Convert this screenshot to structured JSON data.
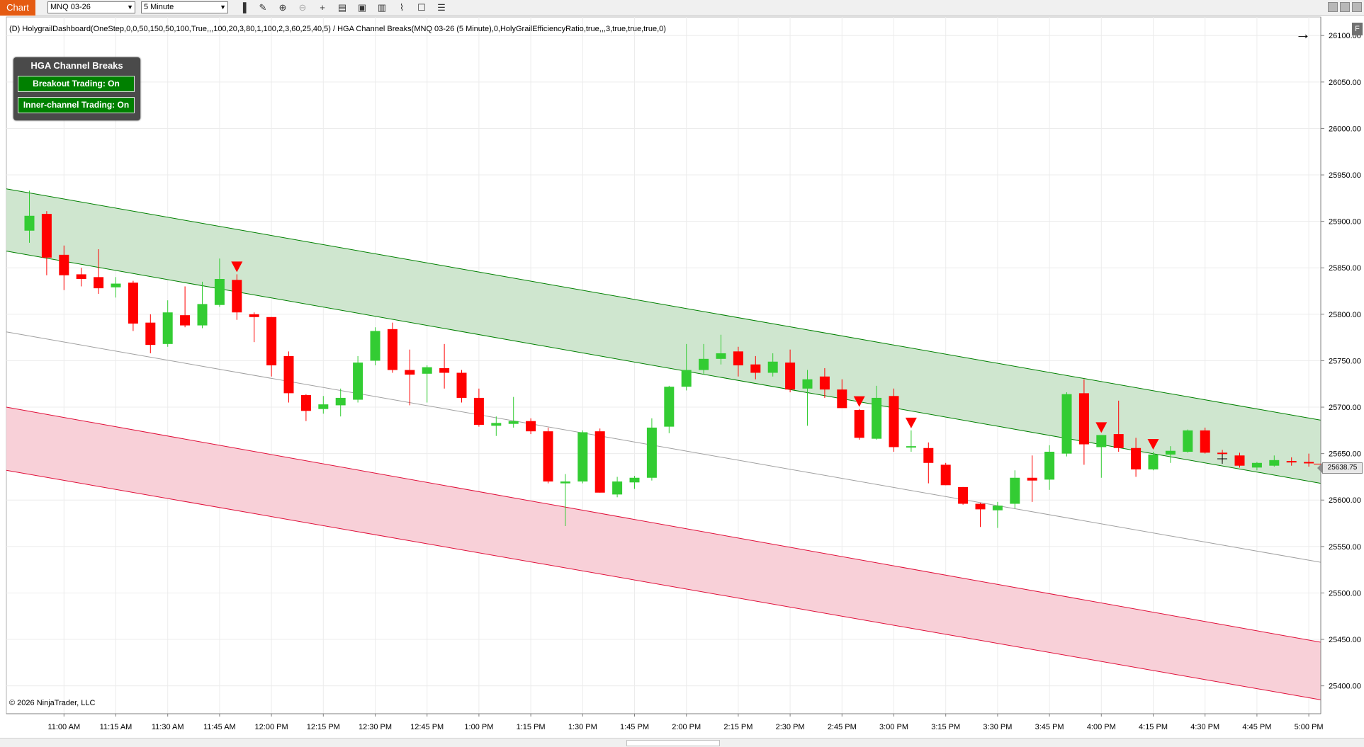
{
  "toolbar": {
    "tab_label": "Chart",
    "instrument": "MNQ 03-26",
    "interval": "5 Minute",
    "tools": [
      "bar-type-icon",
      "drawing-tools-icon",
      "zoom-in-icon",
      "zoom-out-icon",
      "crosshair-icon",
      "data-box-icon",
      "strategies-icon",
      "indicators-icon",
      "chart-trader-icon",
      "properties-icon"
    ]
  },
  "chart": {
    "indicator_text": "(D) HolygrailDashboard(OneStep,0,0,50,150,50,100,True,,,100,20,3,80,1,100,2,3,60,25,40,5) / HGA Channel Breaks(MNQ 03-26 (5 Minute),0,HolyGrailEfficiencyRatio,true,,,3,true,true,true,0)",
    "copyright": "© 2026 NinjaTrader, LLC",
    "last_price": "25638.75",
    "f_button": "F"
  },
  "dashboard": {
    "title": "HGA Channel Breaks",
    "breakout_label": "Breakout Trading: On",
    "inner_label": "Inner-channel Trading: On"
  },
  "colors": {
    "up": "#33cc33",
    "down": "#ff0000",
    "green_channel": "#008000",
    "green_fill": "#cfe6cf",
    "red_channel": "#e0103a",
    "red_fill": "#f8d0d8",
    "mid_line": "#a0a0a0",
    "tab": "#e55b12"
  },
  "chart_data": {
    "type": "candlestick",
    "instrument": "MNQ 03-26",
    "interval": "5 Minute",
    "ylim": [
      25370,
      26120
    ],
    "y_ticks": [
      "26100.00",
      "26050.00",
      "26000.00",
      "25950.00",
      "25900.00",
      "25850.00",
      "25800.00",
      "25750.00",
      "25700.00",
      "25650.00",
      "25600.00",
      "25550.00",
      "25500.00",
      "25450.00",
      "25400.00"
    ],
    "y_tick_values": [
      26100,
      26050,
      26000,
      25950,
      25900,
      25850,
      25800,
      25750,
      25700,
      25650,
      25600,
      25550,
      25500,
      25450,
      25400
    ],
    "x_labels": [
      "11:00 AM",
      "11:15 AM",
      "11:30 AM",
      "11:45 AM",
      "12:00 PM",
      "12:15 PM",
      "12:30 PM",
      "12:45 PM",
      "1:00 PM",
      "1:15 PM",
      "1:30 PM",
      "1:45 PM",
      "2:00 PM",
      "2:15 PM",
      "2:30 PM",
      "2:45 PM",
      "3:00 PM",
      "3:15 PM",
      "3:30 PM",
      "3:45 PM",
      "4:00 PM",
      "4:15 PM",
      "4:30 PM",
      "4:45 PM",
      "5:00 PM"
    ],
    "x_label_index": [
      2,
      5,
      8,
      11,
      14,
      17,
      20,
      23,
      26,
      29,
      32,
      35,
      38,
      41,
      44,
      47,
      50,
      53,
      56,
      59,
      62,
      65,
      68,
      71,
      74
    ],
    "candles": [
      {
        "o": 25890,
        "h": 25933,
        "l": 25877,
        "c": 25906
      },
      {
        "o": 25908,
        "h": 25911,
        "l": 25842,
        "c": 25861
      },
      {
        "o": 25864,
        "h": 25874,
        "l": 25826,
        "c": 25842
      },
      {
        "o": 25843,
        "h": 25850,
        "l": 25830,
        "c": 25838
      },
      {
        "o": 25840,
        "h": 25870,
        "l": 25822,
        "c": 25828
      },
      {
        "o": 25829,
        "h": 25840,
        "l": 25818,
        "c": 25833
      },
      {
        "o": 25834,
        "h": 25836,
        "l": 25782,
        "c": 25790
      },
      {
        "o": 25791,
        "h": 25800,
        "l": 25758,
        "c": 25767
      },
      {
        "o": 25768,
        "h": 25815,
        "l": 25765,
        "c": 25802
      },
      {
        "o": 25799,
        "h": 25830,
        "l": 25786,
        "c": 25788
      },
      {
        "o": 25788,
        "h": 25835,
        "l": 25785,
        "c": 25811
      },
      {
        "o": 25810,
        "h": 25860,
        "l": 25808,
        "c": 25838
      },
      {
        "o": 25837,
        "h": 25843,
        "l": 25794,
        "c": 25802
      },
      {
        "o": 25800,
        "h": 25802,
        "l": 25770,
        "c": 25797
      },
      {
        "o": 25797,
        "h": 25797,
        "l": 25733,
        "c": 25745
      },
      {
        "o": 25755,
        "h": 25760,
        "l": 25705,
        "c": 25715
      },
      {
        "o": 25713,
        "h": 25714,
        "l": 25685,
        "c": 25696
      },
      {
        "o": 25698,
        "h": 25712,
        "l": 25693,
        "c": 25703
      },
      {
        "o": 25702,
        "h": 25720,
        "l": 25690,
        "c": 25710
      },
      {
        "o": 25708,
        "h": 25755,
        "l": 25705,
        "c": 25748
      },
      {
        "o": 25750,
        "h": 25786,
        "l": 25745,
        "c": 25782
      },
      {
        "o": 25784,
        "h": 25791,
        "l": 25737,
        "c": 25740
      },
      {
        "o": 25740,
        "h": 25762,
        "l": 25702,
        "c": 25735
      },
      {
        "o": 25736,
        "h": 25745,
        "l": 25705,
        "c": 25743
      },
      {
        "o": 25742,
        "h": 25768,
        "l": 25720,
        "c": 25737
      },
      {
        "o": 25737,
        "h": 25740,
        "l": 25705,
        "c": 25710
      },
      {
        "o": 25710,
        "h": 25720,
        "l": 25679,
        "c": 25681
      },
      {
        "o": 25680,
        "h": 25690,
        "l": 25669,
        "c": 25683
      },
      {
        "o": 25682,
        "h": 25711,
        "l": 25678,
        "c": 25685
      },
      {
        "o": 25685,
        "h": 25688,
        "l": 25671,
        "c": 25674
      },
      {
        "o": 25674,
        "h": 25678,
        "l": 25618,
        "c": 25620
      },
      {
        "o": 25618,
        "h": 25628,
        "l": 25572,
        "c": 25620
      },
      {
        "o": 25620,
        "h": 25675,
        "l": 25618,
        "c": 25673
      },
      {
        "o": 25674,
        "h": 25677,
        "l": 25608,
        "c": 25608
      },
      {
        "o": 25606,
        "h": 25625,
        "l": 25603,
        "c": 25620
      },
      {
        "o": 25619,
        "h": 25626,
        "l": 25612,
        "c": 25624
      },
      {
        "o": 25624,
        "h": 25688,
        "l": 25621,
        "c": 25678
      },
      {
        "o": 25679,
        "h": 25723,
        "l": 25672,
        "c": 25722
      },
      {
        "o": 25722,
        "h": 25768,
        "l": 25718,
        "c": 25740
      },
      {
        "o": 25740,
        "h": 25768,
        "l": 25735,
        "c": 25752
      },
      {
        "o": 25752,
        "h": 25778,
        "l": 25746,
        "c": 25758
      },
      {
        "o": 25760,
        "h": 25765,
        "l": 25733,
        "c": 25745
      },
      {
        "o": 25746,
        "h": 25755,
        "l": 25730,
        "c": 25737
      },
      {
        "o": 25737,
        "h": 25758,
        "l": 25733,
        "c": 25749
      },
      {
        "o": 25748,
        "h": 25762,
        "l": 25716,
        "c": 25719
      },
      {
        "o": 25720,
        "h": 25740,
        "l": 25680,
        "c": 25730
      },
      {
        "o": 25733,
        "h": 25742,
        "l": 25710,
        "c": 25719
      },
      {
        "o": 25719,
        "h": 25730,
        "l": 25700,
        "c": 25699
      },
      {
        "o": 25697,
        "h": 25698,
        "l": 25665,
        "c": 25667
      },
      {
        "o": 25666,
        "h": 25723,
        "l": 25665,
        "c": 25710
      },
      {
        "o": 25712,
        "h": 25720,
        "l": 25652,
        "c": 25657
      },
      {
        "o": 25658,
        "h": 25675,
        "l": 25652,
        "c": 25658
      },
      {
        "o": 25656,
        "h": 25662,
        "l": 25618,
        "c": 25640
      },
      {
        "o": 25638,
        "h": 25640,
        "l": 25616,
        "c": 25616
      },
      {
        "o": 25614,
        "h": 25614,
        "l": 25595,
        "c": 25596
      },
      {
        "o": 25596,
        "h": 25597,
        "l": 25571,
        "c": 25590
      },
      {
        "o": 25589,
        "h": 25598,
        "l": 25570,
        "c": 25594
      },
      {
        "o": 25596,
        "h": 25632,
        "l": 25591,
        "c": 25624
      },
      {
        "o": 25624,
        "h": 25648,
        "l": 25598,
        "c": 25621
      },
      {
        "o": 25622,
        "h": 25659,
        "l": 25611,
        "c": 25652
      },
      {
        "o": 25650,
        "h": 25716,
        "l": 25647,
        "c": 25714
      },
      {
        "o": 25715,
        "h": 25730,
        "l": 25638,
        "c": 25660
      },
      {
        "o": 25657,
        "h": 25670,
        "l": 25624,
        "c": 25670
      },
      {
        "o": 25671,
        "h": 25707,
        "l": 25652,
        "c": 25656
      },
      {
        "o": 25656,
        "h": 25667,
        "l": 25625,
        "c": 25633
      },
      {
        "o": 25633,
        "h": 25652,
        "l": 25632,
        "c": 25649
      },
      {
        "o": 25649,
        "h": 25658,
        "l": 25640,
        "c": 25653
      },
      {
        "o": 25652,
        "h": 25676,
        "l": 25651,
        "c": 25675
      },
      {
        "o": 25675,
        "h": 25678,
        "l": 25650,
        "c": 25651
      },
      {
        "o": 25651,
        "h": 25654,
        "l": 25641,
        "c": 25650
      },
      {
        "o": 25648,
        "h": 25651,
        "l": 25635,
        "c": 25637
      },
      {
        "o": 25635,
        "h": 25641,
        "l": 25632,
        "c": 25640
      },
      {
        "o": 25637,
        "h": 25648,
        "l": 25636,
        "c": 25643
      },
      {
        "o": 25642,
        "h": 25646,
        "l": 25637,
        "c": 25641
      },
      {
        "o": 25641,
        "h": 25650,
        "l": 25636,
        "c": 25640
      }
    ],
    "signals": [
      {
        "index": 12,
        "direction": "short"
      },
      {
        "index": 48,
        "direction": "short"
      },
      {
        "index": 51,
        "direction": "short"
      },
      {
        "index": 62,
        "direction": "short"
      },
      {
        "index": 65,
        "direction": "short"
      }
    ],
    "channels": {
      "green_upper": [
        25935,
        25686
      ],
      "green_lower": [
        25868,
        25618
      ],
      "mid_line": [
        25781,
        25533
      ],
      "red_upper": [
        25700,
        25447
      ],
      "red_lower": [
        25632,
        25385
      ]
    },
    "last_price": 25638.75,
    "grid": true
  }
}
